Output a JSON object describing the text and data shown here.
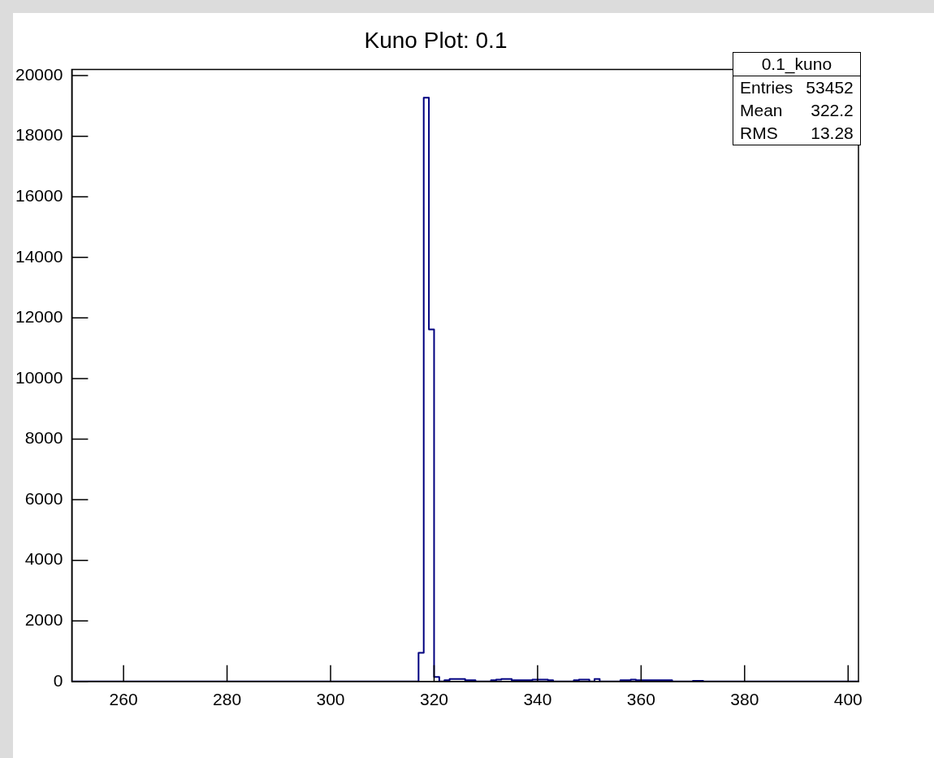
{
  "chart_data": {
    "type": "histogram",
    "title": "Kuno Plot: 0.1",
    "bins": [
      250,
      251,
      252,
      253,
      254,
      255,
      256,
      257,
      258,
      259,
      260,
      261,
      262,
      263,
      264,
      265,
      266,
      267,
      268,
      269,
      270,
      271,
      272,
      273,
      274,
      275,
      276,
      277,
      278,
      279,
      280,
      281,
      282,
      283,
      284,
      285,
      286,
      287,
      288,
      289,
      290,
      291,
      292,
      293,
      294,
      295,
      296,
      297,
      298,
      299,
      300,
      301,
      302,
      303,
      304,
      305,
      306,
      307,
      308,
      309,
      310,
      311,
      312,
      313,
      314,
      315,
      316,
      317,
      318,
      319,
      320,
      321,
      322,
      323,
      324,
      325,
      326,
      327,
      328,
      329,
      330,
      331,
      332,
      333,
      334,
      335,
      336,
      337,
      338,
      339,
      340,
      341,
      342,
      343,
      344,
      345,
      346,
      347,
      348,
      349,
      350,
      351,
      352,
      353,
      354,
      355,
      356,
      357,
      358,
      359,
      360,
      361,
      362,
      363,
      364,
      365,
      366,
      367,
      368,
      369,
      370,
      371,
      372,
      373,
      374,
      375,
      376,
      377,
      378,
      379,
      380,
      381,
      382,
      383,
      384,
      385,
      386,
      387,
      388,
      389,
      390,
      391,
      392,
      393,
      394,
      395,
      396,
      397,
      398,
      399,
      400,
      401,
      402
    ],
    "values": [
      0,
      0,
      0,
      0,
      0,
      0,
      0,
      0,
      0,
      0,
      0,
      0,
      0,
      0,
      0,
      0,
      0,
      0,
      0,
      0,
      0,
      0,
      0,
      0,
      0,
      0,
      0,
      0,
      0,
      0,
      0,
      0,
      0,
      0,
      0,
      0,
      0,
      0,
      0,
      0,
      0,
      0,
      0,
      0,
      0,
      0,
      0,
      0,
      0,
      0,
      0,
      0,
      0,
      0,
      0,
      0,
      0,
      0,
      0,
      0,
      0,
      0,
      0,
      0,
      0,
      0,
      0,
      950,
      19270,
      11620,
      150,
      0,
      40,
      80,
      80,
      80,
      40,
      40,
      0,
      0,
      0,
      40,
      60,
      80,
      80,
      40,
      40,
      40,
      40,
      60,
      60,
      60,
      40,
      0,
      0,
      0,
      0,
      40,
      60,
      60,
      0,
      80,
      0,
      0,
      0,
      0,
      40,
      40,
      60,
      40,
      40,
      40,
      40,
      40,
      40,
      40,
      0,
      0,
      0,
      0,
      20,
      20,
      0,
      0,
      0,
      0,
      0,
      0,
      0,
      0,
      0,
      0,
      0,
      0,
      0,
      0,
      0,
      0,
      0,
      0,
      0,
      0,
      0,
      0,
      0,
      0,
      0,
      0,
      0,
      0,
      0,
      0
    ],
    "color": "#00007f",
    "xlim": [
      250,
      402
    ],
    "xticks": [
      260,
      280,
      300,
      320,
      340,
      360,
      380,
      400
    ],
    "ylim": [
      0,
      20200
    ],
    "yticks": [
      0,
      2000,
      4000,
      6000,
      8000,
      10000,
      12000,
      14000,
      16000,
      18000,
      20000
    ],
    "grid": false,
    "legend": false,
    "annotations": [
      "0.1_kuno",
      "Entries",
      "53452",
      "Mean",
      "322.2",
      "RMS",
      "13.28"
    ]
  }
}
